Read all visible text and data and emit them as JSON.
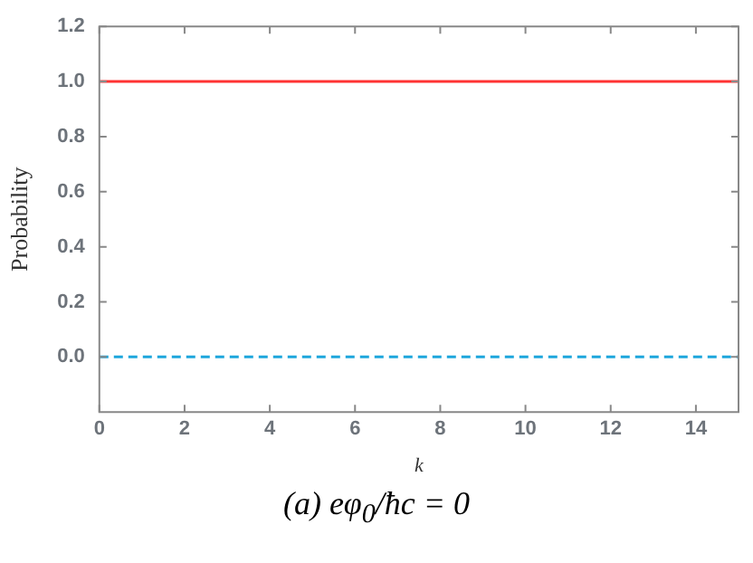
{
  "chart_data": {
    "type": "line",
    "xlabel": "k",
    "ylabel": "Probability",
    "annotations": [
      "(a) eφ$_{0}$/ħc = 0"
    ],
    "x": [
      0,
      15
    ],
    "series": [
      {
        "color": "#ff3333",
        "values": [
          1,
          1
        ],
        "line_style": "solid"
      },
      {
        "color": "#1ea6dc",
        "values": [
          0,
          0
        ],
        "line_style": "dashed"
      }
    ],
    "xlim": [
      0,
      15
    ],
    "xticks": [
      0,
      2,
      4,
      6,
      8,
      10,
      12,
      14
    ],
    "ylim": [
      -0.2,
      1.2
    ],
    "yticks": [
      {
        "value": 0,
        "label": "0.0"
      },
      {
        "value": 0.2,
        "label": "0.2"
      },
      {
        "value": 0.4,
        "label": "0.4"
      },
      {
        "value": 0.6,
        "label": "0.6"
      },
      {
        "value": 0.8,
        "label": "0.8"
      },
      {
        "value": 1,
        "label": "1.0"
      },
      {
        "value": 1.2,
        "label": "1.2"
      }
    ],
    "grid": false,
    "legend": false,
    "marker": "none"
  }
}
